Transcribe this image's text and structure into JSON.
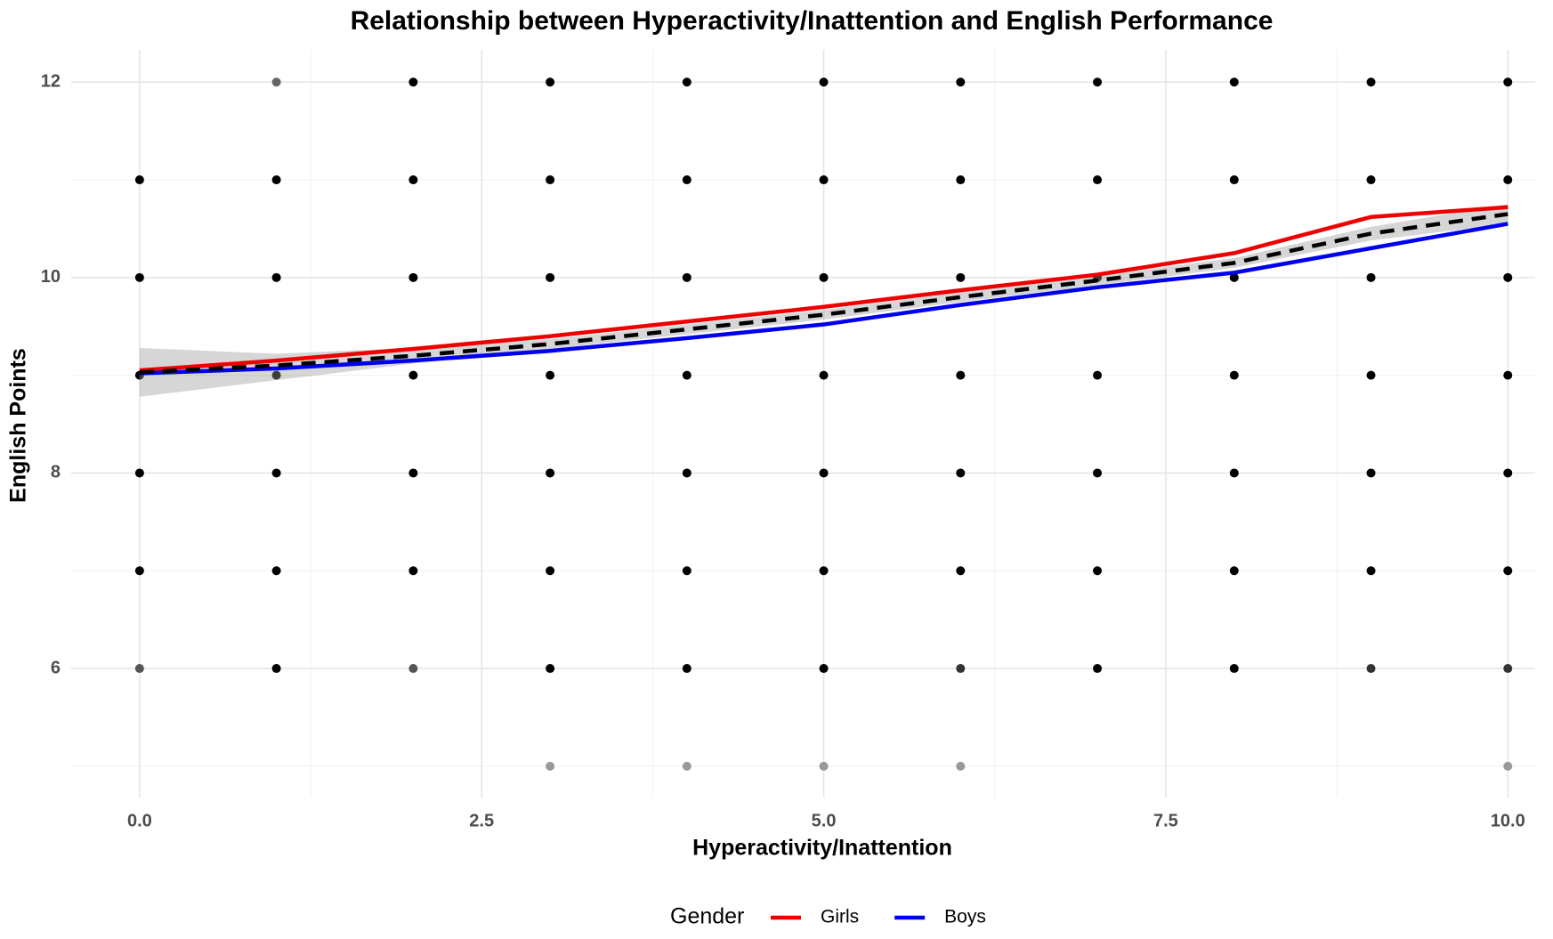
{
  "chart_data": {
    "type": "scatter",
    "title": "Relationship between Hyperactivity/Inattention and English Performance",
    "x_label": "Hyperactivity/Inattention",
    "y_label": "English Points",
    "xlim": [
      -0.5,
      10.2
    ],
    "ylim": [
      4.68,
      12.33
    ],
    "xticks": [
      {
        "value": 0,
        "label": "0.0"
      },
      2.5,
      {
        "value": 5,
        "label": "5.0"
      },
      7.5,
      {
        "value": 10,
        "label": "10.0"
      }
    ],
    "yticks": [
      6,
      8,
      10,
      12
    ],
    "x_minor_grid": [
      1.25,
      3.75,
      6.25,
      8.75
    ],
    "y_minor_grid": [
      5,
      7,
      9,
      11
    ],
    "grid": true,
    "points": {
      "x": [
        0,
        0,
        0,
        0,
        0,
        0,
        1,
        1,
        1,
        1,
        1,
        1,
        1,
        2,
        2,
        2,
        2,
        2,
        2,
        2,
        3,
        3,
        3,
        3,
        3,
        3,
        3,
        3,
        4,
        4,
        4,
        4,
        4,
        4,
        4,
        4,
        5,
        5,
        5,
        5,
        5,
        5,
        5,
        5,
        6,
        6,
        6,
        6,
        6,
        6,
        6,
        6,
        7,
        7,
        7,
        7,
        7,
        7,
        7,
        8,
        8,
        8,
        8,
        8,
        8,
        8,
        9,
        9,
        9,
        9,
        9,
        9,
        9,
        10,
        10,
        10,
        10,
        10,
        10,
        10,
        10
      ],
      "y": [
        11,
        10,
        9,
        8,
        7,
        6,
        12,
        11,
        10,
        9,
        8,
        7,
        6,
        12,
        11,
        10,
        9,
        8,
        7,
        6,
        12,
        11,
        10,
        9,
        8,
        7,
        6,
        5,
        12,
        11,
        10,
        9,
        8,
        7,
        6,
        5,
        12,
        11,
        10,
        9,
        8,
        7,
        6,
        5,
        12,
        11,
        10,
        9,
        8,
        7,
        6,
        5,
        12,
        11,
        10,
        9,
        8,
        7,
        6,
        12,
        11,
        10,
        9,
        8,
        7,
        6,
        12,
        11,
        10,
        9,
        8,
        7,
        6,
        12,
        11,
        10,
        9,
        8,
        7,
        6,
        5
      ],
      "colors": [
        "#000",
        "#000",
        "#000",
        "#000",
        "#000",
        "#555",
        "#666",
        "#000",
        "#000",
        "#000",
        "#000",
        "#000",
        "#000",
        "#000",
        "#000",
        "#000",
        "#000",
        "#000",
        "#000",
        "#555",
        "#000",
        "#000",
        "#000",
        "#000",
        "#000",
        "#000",
        "#000",
        "#999",
        "#000",
        "#000",
        "#000",
        "#000",
        "#000",
        "#000",
        "#000",
        "#999",
        "#000",
        "#000",
        "#000",
        "#000",
        "#000",
        "#000",
        "#000",
        "#999",
        "#000",
        "#000",
        "#000",
        "#000",
        "#000",
        "#000",
        "#333",
        "#999",
        "#000",
        "#000",
        "#000",
        "#000",
        "#000",
        "#000",
        "#000",
        "#000",
        "#000",
        "#000",
        "#000",
        "#000",
        "#000",
        "#000",
        "#000",
        "#000",
        "#000",
        "#000",
        "#000",
        "#000",
        "#333",
        "#000",
        "#000",
        "#000",
        "#000",
        "#000",
        "#000",
        "#333",
        "#999"
      ]
    },
    "curve_x": [
      0,
      1,
      2,
      3,
      4,
      5,
      6,
      7,
      8,
      9,
      10
    ],
    "trend": {
      "color": "#000000",
      "values": [
        9.03,
        9.1,
        9.2,
        9.32,
        9.47,
        9.62,
        9.8,
        9.97,
        10.15,
        10.45,
        10.65
      ],
      "lower": [
        8.78,
        8.95,
        9.12,
        9.27,
        9.42,
        9.57,
        9.75,
        9.92,
        10.1,
        10.38,
        10.55
      ],
      "upper": [
        9.28,
        9.22,
        9.28,
        9.37,
        9.52,
        9.67,
        9.85,
        10.02,
        10.2,
        10.52,
        10.75
      ]
    },
    "legend_title": "Gender",
    "legend_position": "bottom",
    "series": [
      {
        "name": "Girls",
        "color": "#ee0000",
        "values": [
          9.05,
          9.15,
          9.27,
          9.4,
          9.55,
          9.7,
          9.87,
          10.03,
          10.25,
          10.62,
          10.72
        ]
      },
      {
        "name": "Boys",
        "color": "#0000ee",
        "values": [
          9.02,
          9.07,
          9.15,
          9.25,
          9.38,
          9.52,
          9.72,
          9.9,
          10.05,
          10.3,
          10.55
        ]
      }
    ]
  }
}
